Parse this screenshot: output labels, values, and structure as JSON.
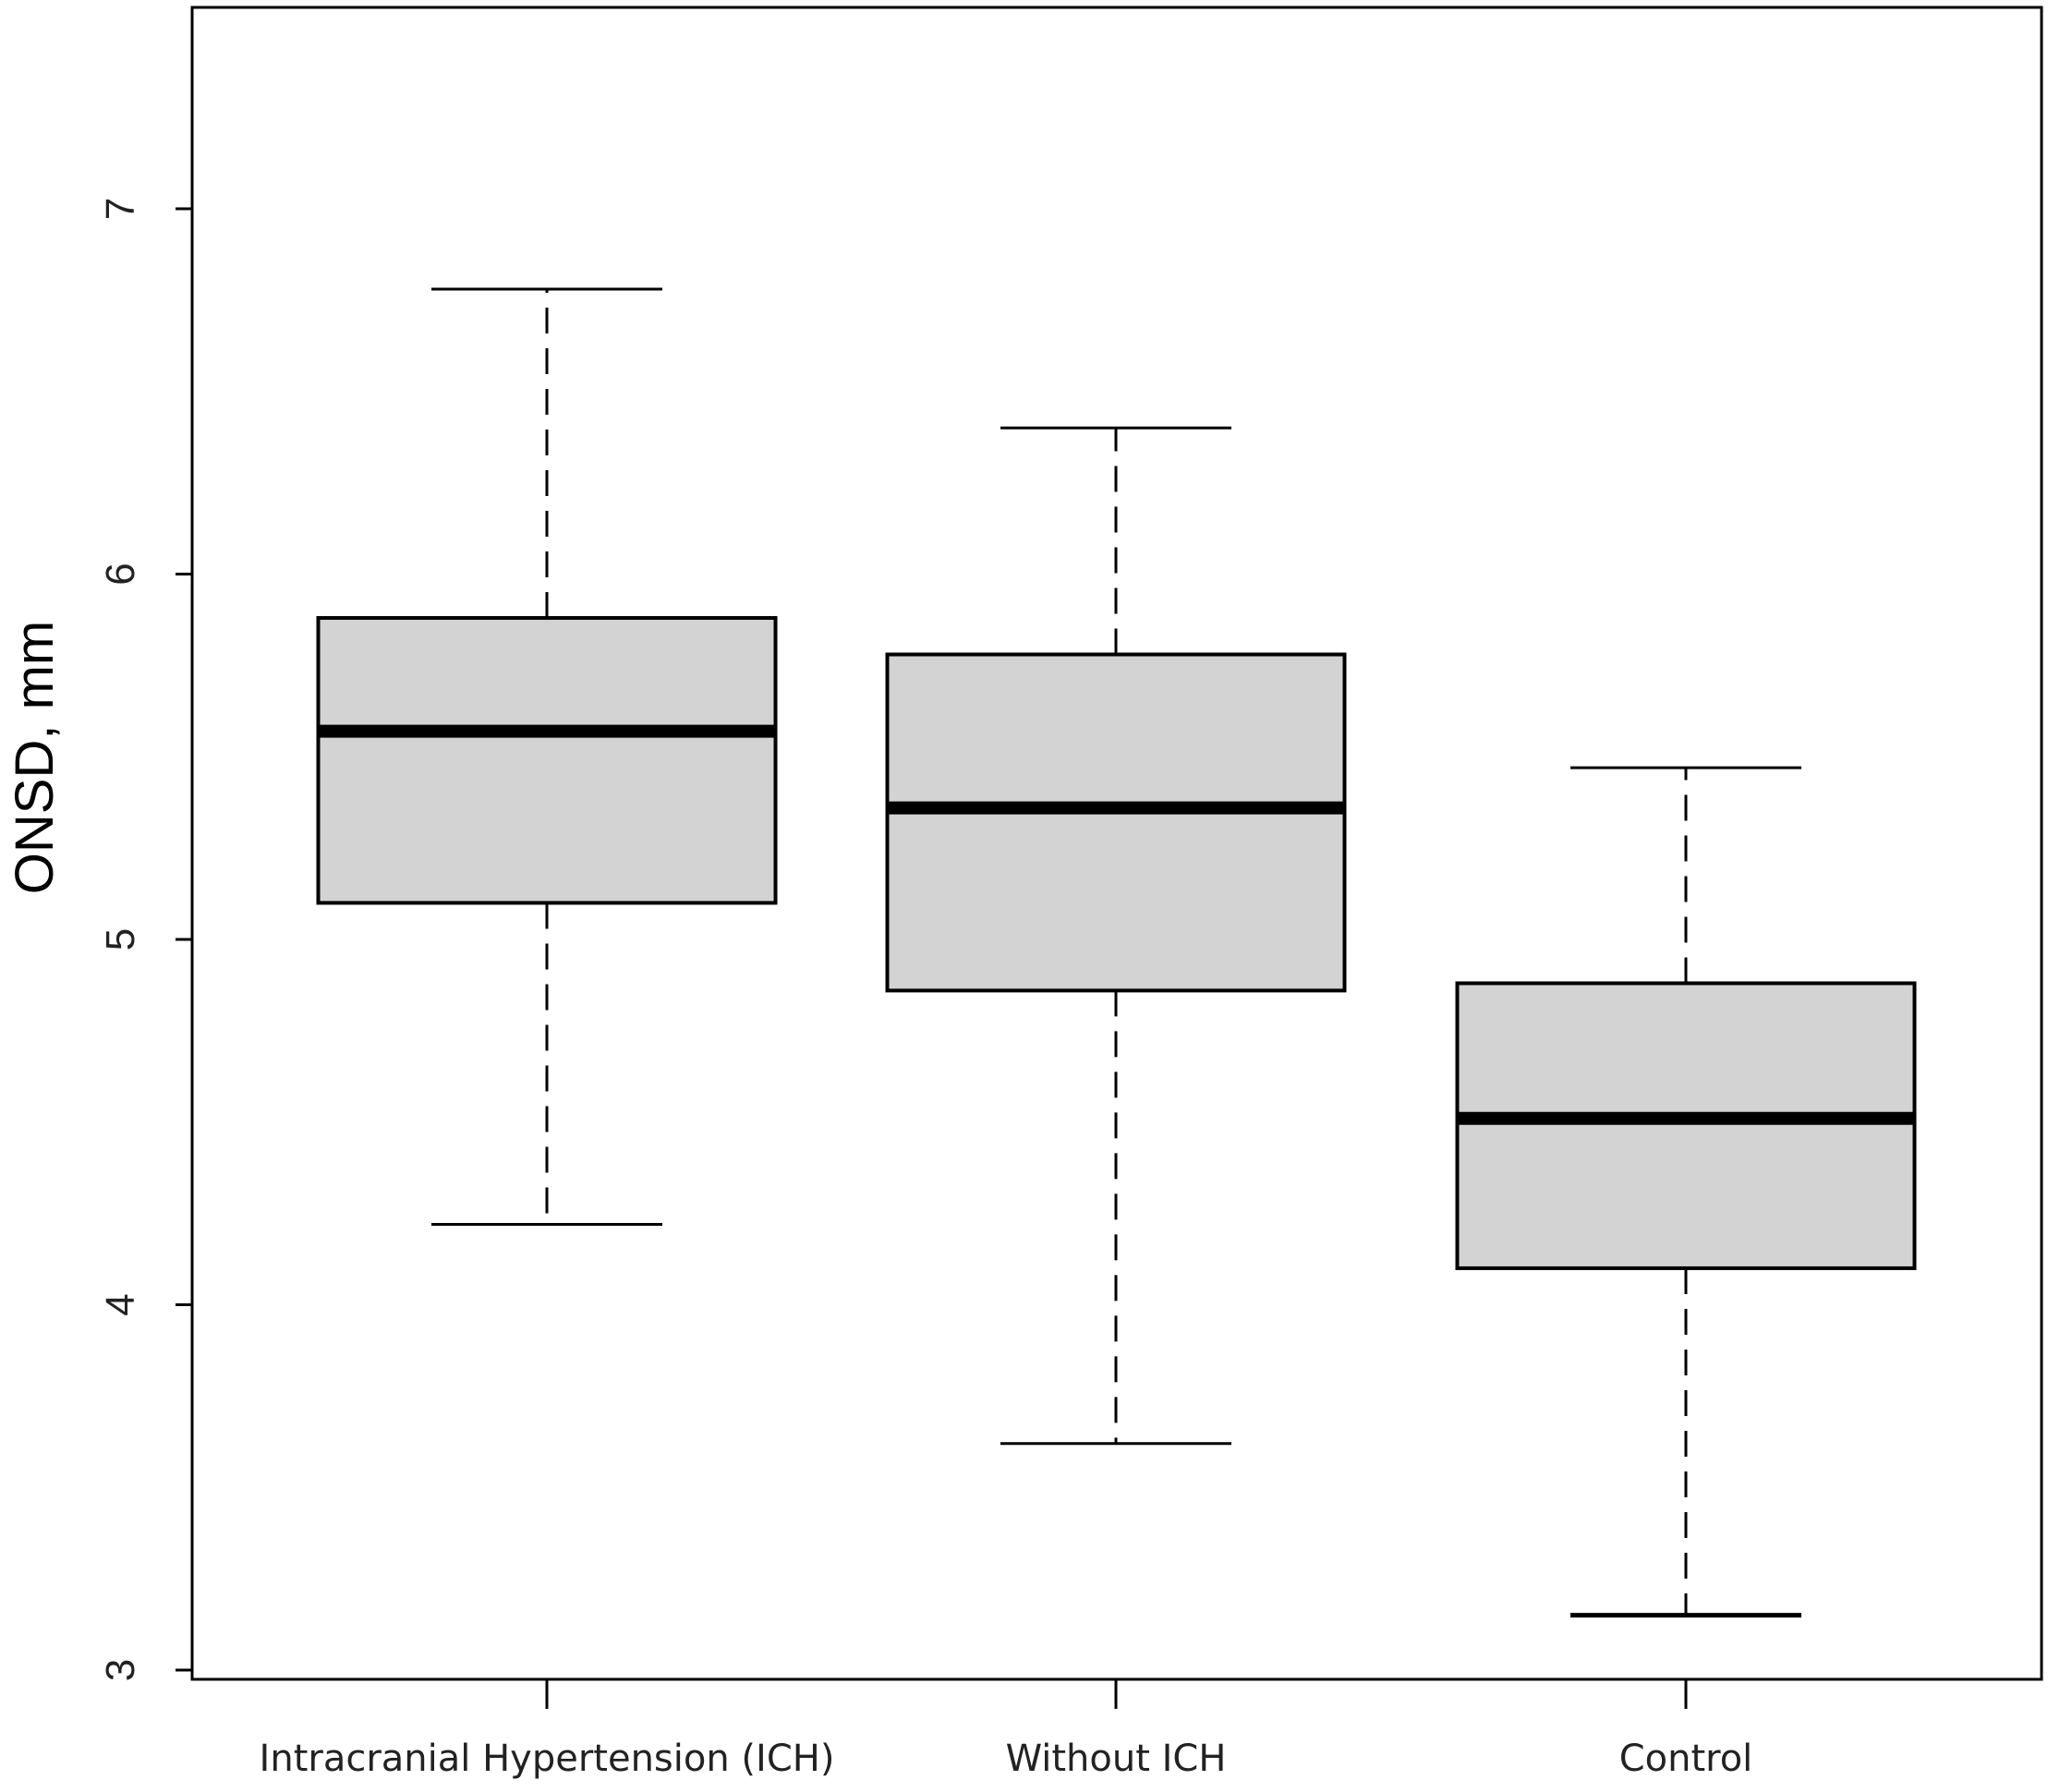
{
  "chart_data": {
    "type": "boxplot",
    "title": "",
    "xlabel": "",
    "ylabel": "ONSD, mm",
    "ylim": [
      3,
      7.55
    ],
    "yticks": [
      3,
      4,
      5,
      6,
      7
    ],
    "grid": false,
    "legend": "none",
    "categories": [
      "Intracranial Hypertension (ICH)",
      "Without ICH",
      "Control"
    ],
    "boxes": [
      {
        "category": "Intracranial Hypertension (ICH)",
        "whisker_low": 4.22,
        "q1": 5.1,
        "median": 5.57,
        "q3": 5.88,
        "whisker_high": 6.78
      },
      {
        "category": "Without ICH",
        "whisker_low": 3.62,
        "q1": 4.86,
        "median": 5.36,
        "q3": 5.78,
        "whisker_high": 6.4
      },
      {
        "category": "Control",
        "whisker_low": 3.15,
        "q1": 4.1,
        "median": 4.51,
        "q3": 4.88,
        "whisker_high": 5.47
      }
    ],
    "colors": {
      "box_fill": "#d3d3d3",
      "stroke": "#000000"
    }
  }
}
